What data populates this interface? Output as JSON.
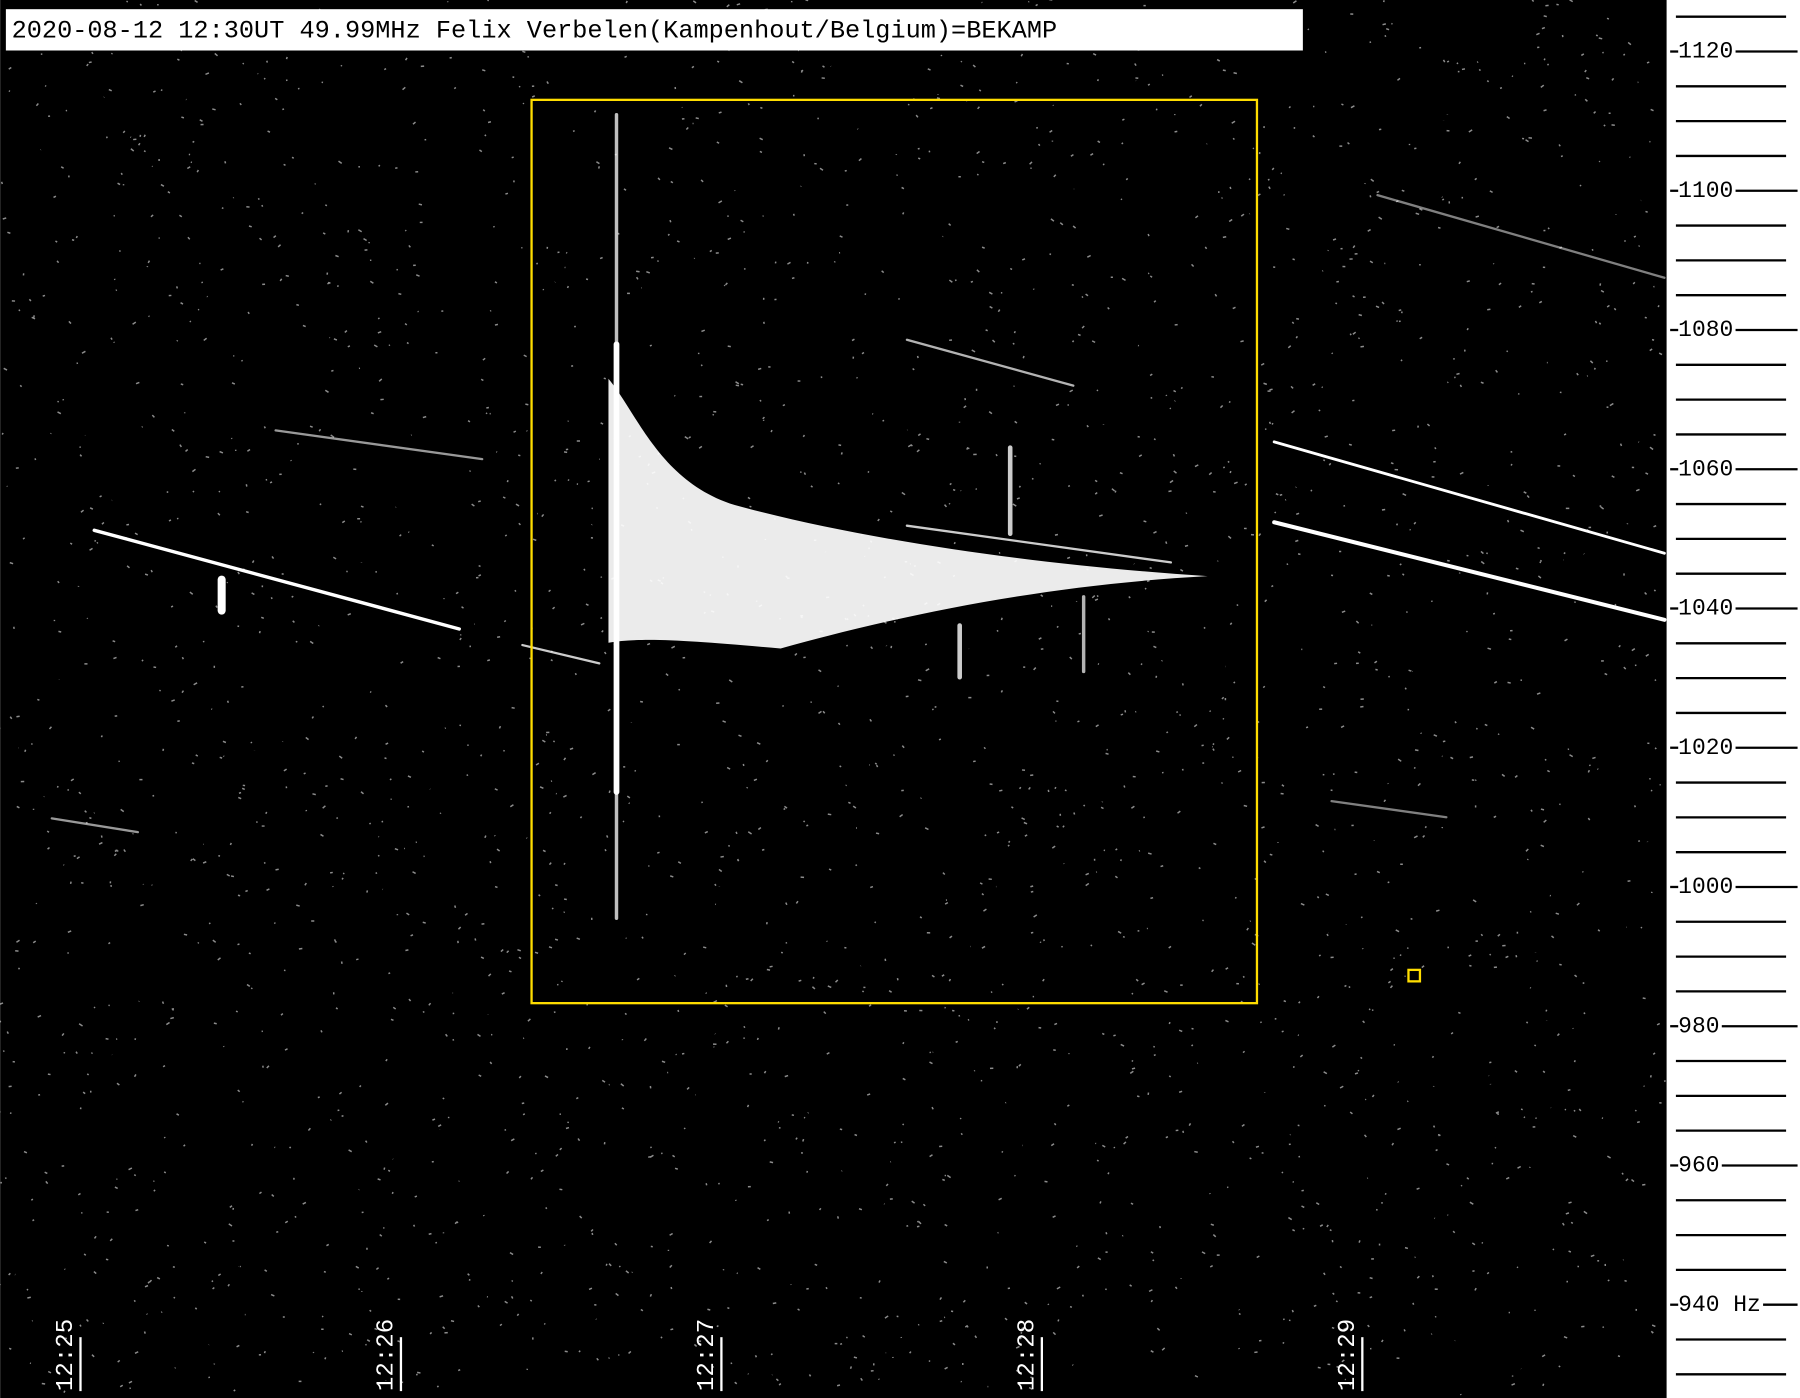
{
  "chart_data": {
    "type": "spectrogram",
    "title": "2020-08-12 12:30UT 49.99MHz Felix Verbelen(Kampenhout/Belgium)=BEKAMP",
    "x": [
      "12:25",
      "12:26",
      "12:27",
      "12:28",
      "12:29"
    ],
    "ylim": [
      926.6,
      1127.4
    ],
    "yticks": [
      {
        "value": 940,
        "label": "940 Hz"
      },
      960,
      980,
      1000,
      1020,
      1040,
      1060,
      1080,
      1100,
      1120
    ]
  }
}
